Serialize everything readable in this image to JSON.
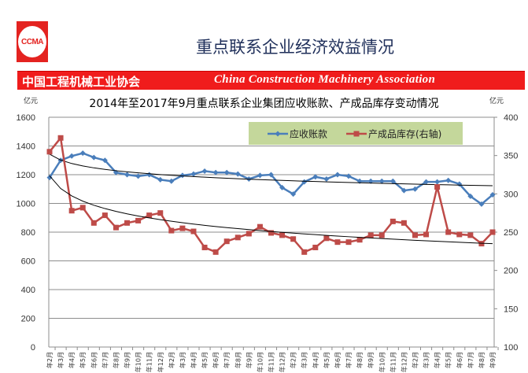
{
  "header": {
    "logo_text": "CCMA",
    "title": "重点联系企业经济效益情况",
    "banner_cn": "中国工程机械工业协会",
    "banner_en": "China Construction Machinery Association"
  },
  "chart_data": {
    "type": "line",
    "title": "2014年至2017年9月重点联系企业集团应收账款、产成品库存变动情况",
    "ylabel": "亿元",
    "y2label": "亿元",
    "ylim": [
      0,
      1600
    ],
    "y_ticks": [
      "0",
      "200",
      "400",
      "600",
      "800",
      "1000",
      "1200",
      "1400",
      "1600"
    ],
    "y2lim": [
      100,
      400
    ],
    "y2_ticks": [
      "100",
      "150",
      "200",
      "250",
      "300",
      "350",
      "400"
    ],
    "grid": true,
    "legend": "top-right",
    "categories": [
      "年2月",
      "年3月",
      "年4月",
      "年5月",
      "年6月",
      "年7月",
      "年8月",
      "年9月",
      "年10月",
      "年11月",
      "年12月",
      "年2月",
      "年3月",
      "年4月",
      "年5月",
      "年6月",
      "年7月",
      "年8月",
      "年9月",
      "年10月",
      "年11月",
      "年12月",
      "年2月",
      "年3月",
      "年4月",
      "年5月",
      "年6月",
      "年7月",
      "年8月",
      "年9月",
      "年10月",
      "年11月",
      "年12月",
      "年2月",
      "年3月",
      "年4月",
      "年5月",
      "年6月",
      "年7月",
      "年8月",
      "年9月"
    ],
    "series": [
      {
        "name": "应收账款",
        "axis": "left",
        "color": "#4a7ebb",
        "marker": "diamond",
        "trendline": "logarithmic",
        "values": [
          1180,
          1300,
          1330,
          1350,
          1320,
          1300,
          1215,
          1200,
          1190,
          1200,
          1165,
          1155,
          1195,
          1205,
          1225,
          1215,
          1215,
          1205,
          1170,
          1195,
          1200,
          1110,
          1065,
          1150,
          1185,
          1170,
          1200,
          1190,
          1155,
          1155,
          1155,
          1155,
          1090,
          1100,
          1150,
          1150,
          1160,
          1135,
          1050,
          995,
          1060
        ]
      },
      {
        "name": "产成品库存(右轴)",
        "axis": "right",
        "color": "#be4b48",
        "marker": "square",
        "trendline": "logarithmic",
        "values": [
          355,
          373,
          278,
          282,
          262,
          272,
          256,
          262,
          265,
          272,
          275,
          252,
          255,
          251,
          230,
          224,
          238,
          243,
          248,
          257,
          249,
          246,
          241,
          224,
          230,
          242,
          237,
          237,
          240,
          246,
          246,
          264,
          262,
          246,
          247,
          309,
          250,
          247,
          246,
          235,
          250
        ]
      }
    ]
  }
}
